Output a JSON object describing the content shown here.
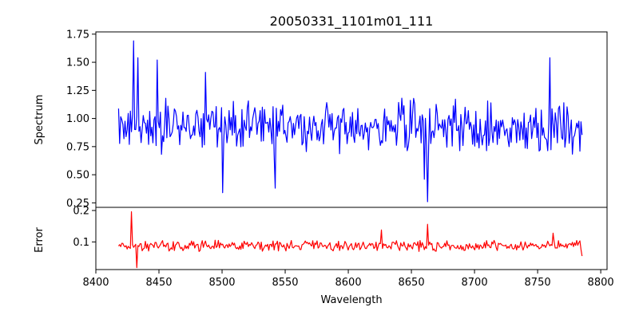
{
  "chart_data": {
    "type": "line",
    "title": "20050331_1101m01_111",
    "xlabel": "Wavelength",
    "xlim": [
      8400,
      8805
    ],
    "x_ticks": [
      8400,
      8450,
      8500,
      8550,
      8600,
      8650,
      8700,
      8750,
      8800
    ],
    "x_tick_labels": [
      "8400",
      "8450",
      "8500",
      "8550",
      "8600",
      "8650",
      "8700",
      "8750",
      "8800"
    ],
    "wavelength_range": [
      8418,
      8786
    ],
    "panels": [
      {
        "name": "spectrum",
        "ylabel": "Spectrum",
        "ylim": [
          0.21,
          1.77
        ],
        "y_ticks": [
          0.25,
          0.5,
          0.75,
          1.0,
          1.25,
          1.5,
          1.75
        ],
        "y_tick_labels": [
          "0.25",
          "0.50",
          "0.75",
          "1.00",
          "1.25",
          "1.50",
          "1.75"
        ],
        "color": "#0000ff",
        "baseline": 0.93,
        "noise_amplitude": 0.17,
        "features": [
          {
            "x": 8429.5,
            "y": 1.69
          },
          {
            "x": 8433.5,
            "y": 1.54
          },
          {
            "x": 8449,
            "y": 1.52
          },
          {
            "x": 8486.5,
            "y": 1.41
          },
          {
            "x": 8500.5,
            "y": 0.34
          },
          {
            "x": 8542,
            "y": 0.38
          },
          {
            "x": 8662.5,
            "y": 0.26
          },
          {
            "x": 8660.5,
            "y": 0.46
          },
          {
            "x": 8760,
            "y": 1.54
          }
        ]
      },
      {
        "name": "error",
        "ylabel": "Error",
        "ylim": [
          0.012,
          0.21
        ],
        "y_ticks": [
          0.1,
          0.2
        ],
        "y_tick_labels": [
          "0.1",
          "0.2"
        ],
        "color": "#ff0000",
        "baseline": 0.088,
        "noise_amplitude": 0.012,
        "features": [
          {
            "x": 8428.5,
            "y": 0.196
          },
          {
            "x": 8432.5,
            "y": 0.018
          },
          {
            "x": 8663,
            "y": 0.156
          },
          {
            "x": 8626,
            "y": 0.138
          },
          {
            "x": 8762,
            "y": 0.128
          },
          {
            "x": 8786,
            "y": 0.055
          }
        ]
      }
    ]
  }
}
